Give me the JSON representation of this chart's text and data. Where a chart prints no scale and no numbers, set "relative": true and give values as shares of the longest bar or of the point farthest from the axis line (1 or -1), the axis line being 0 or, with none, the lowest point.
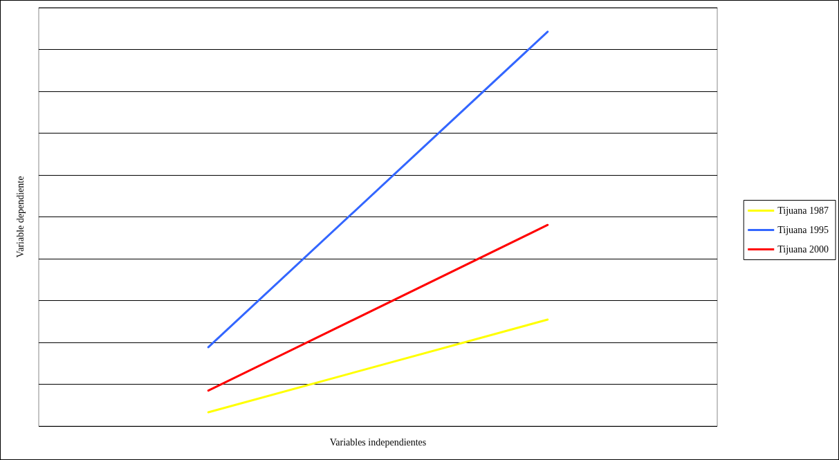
{
  "chart_data": {
    "type": "line",
    "relative": true,
    "xlabel": "Variables independientes",
    "ylabel": "Variable dependiente",
    "categories": [
      null,
      null
    ],
    "series": [
      {
        "name": "Tijuana 1987",
        "color": "#ffff00",
        "values": [
          0.035,
          0.27
        ]
      },
      {
        "name": "Tijuana 1995",
        "color": "#3366ff",
        "values": [
          0.2,
          1
        ]
      },
      {
        "name": "Tijuana 2000",
        "color": "#ff0000",
        "values": [
          0.09,
          0.51
        ]
      }
    ],
    "grid": "y",
    "legend": "right",
    "marker": "none",
    "line_style": "solid"
  }
}
